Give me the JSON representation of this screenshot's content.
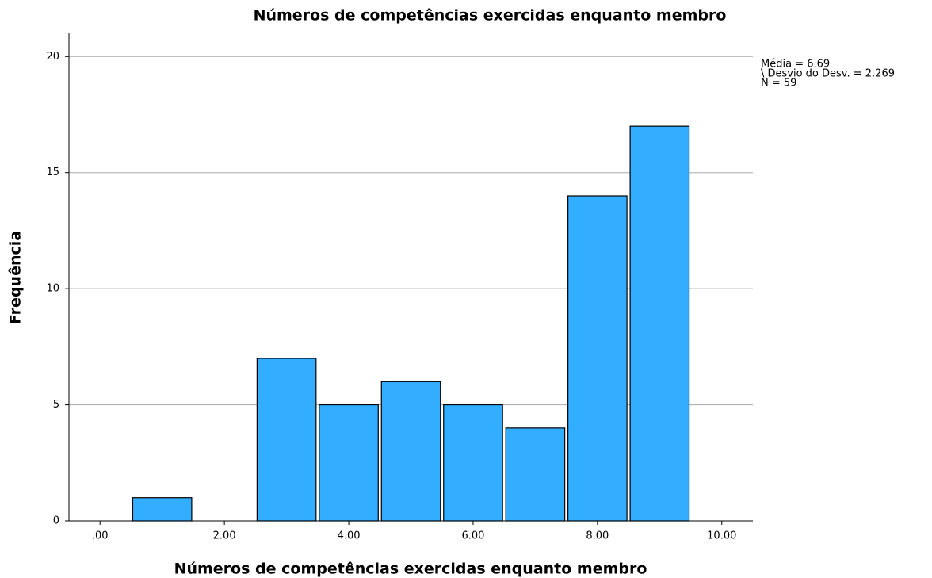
{
  "chart_data": {
    "type": "histogram",
    "title": "Números de competências exercidas enquanto membro",
    "x_label": "Números de competências exercidas enquanto membro",
    "y_label": "Frequência",
    "bins": [
      0.5,
      1.5,
      2.5,
      3.5,
      4.5,
      5.5,
      6.5,
      7.5,
      8.5,
      9.5
    ],
    "values": [
      1,
      0,
      7,
      5,
      6,
      5,
      4,
      14,
      17
    ],
    "color": "#33adff",
    "xlim": [
      -0.5,
      10.5
    ],
    "xticks": [
      {
        "value": 0,
        "label": ".00"
      },
      {
        "value": 2,
        "label": "2.00"
      },
      {
        "value": 4,
        "label": "4.00"
      },
      {
        "value": 6,
        "label": "6.00"
      },
      {
        "value": 8,
        "label": "8.00"
      },
      {
        "value": 10,
        "label": "10.00"
      }
    ],
    "ylim": [
      0,
      21
    ],
    "yticks": [
      0,
      5,
      10,
      15,
      20
    ],
    "grid": true,
    "stats": [
      "Média = 6.69",
      "\\ Desvio do Desv. = 2.269",
      "N = 59"
    ]
  }
}
